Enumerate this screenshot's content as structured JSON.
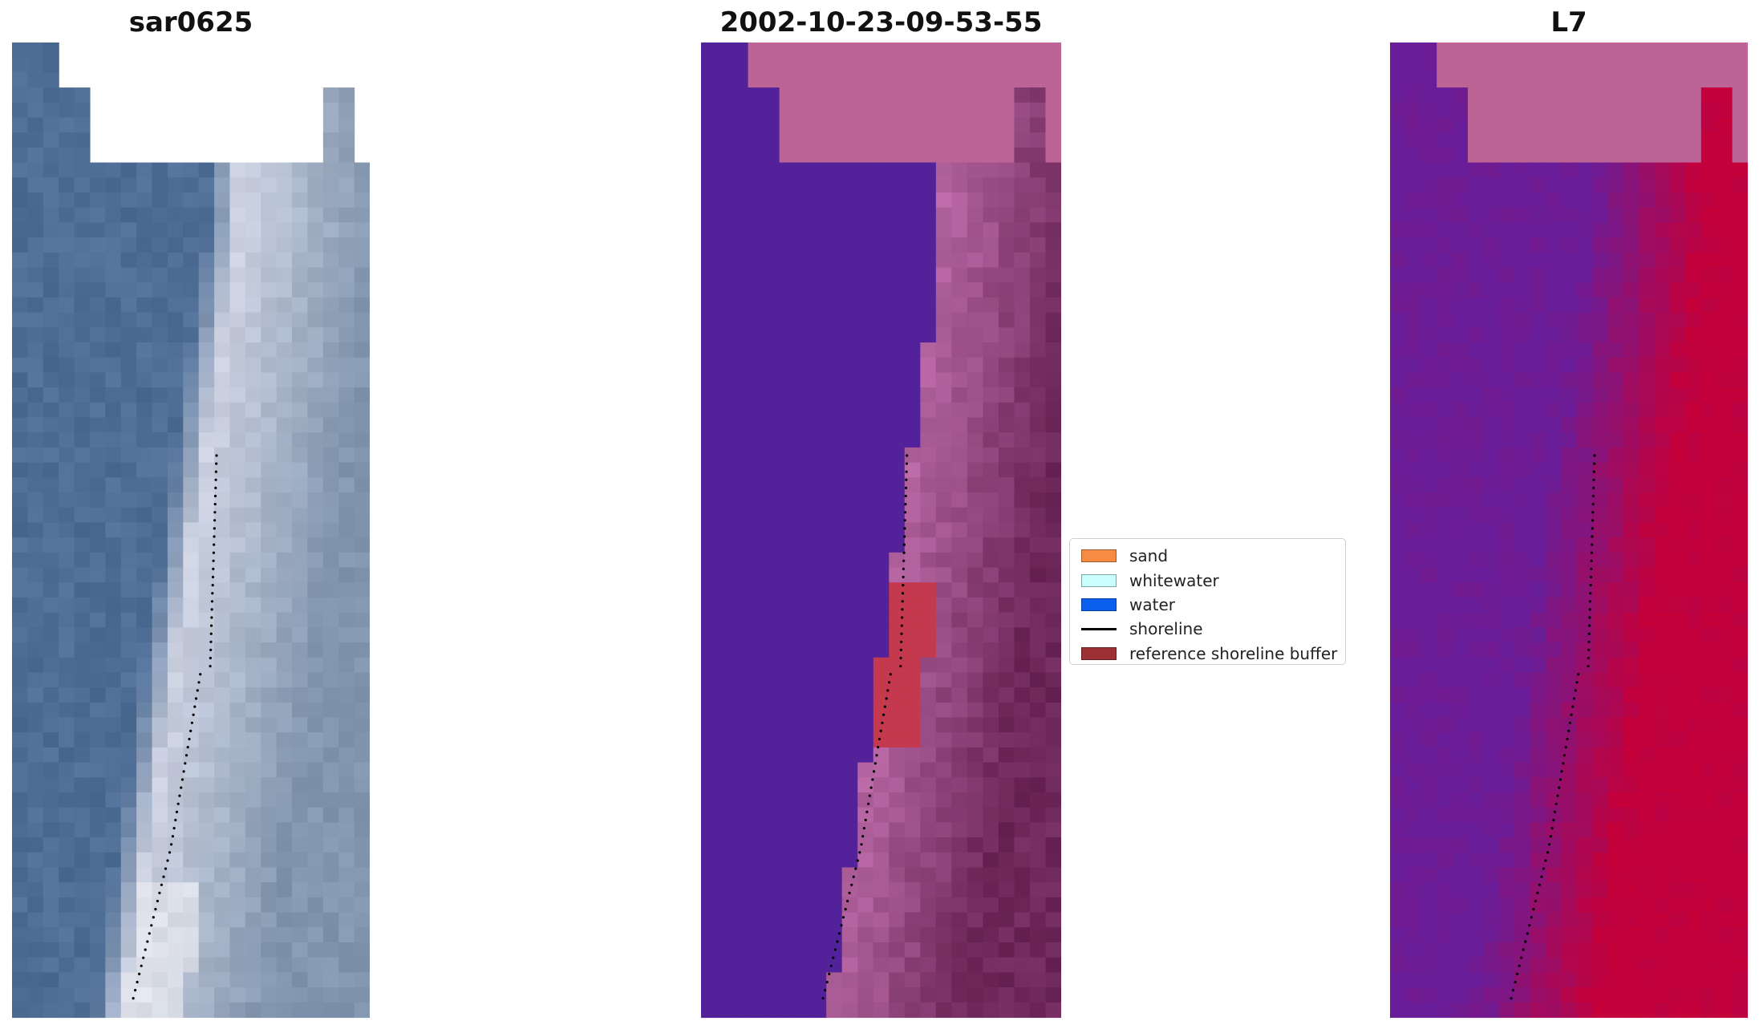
{
  "panels": [
    {
      "title": "sar0625",
      "style": "rgb"
    },
    {
      "title": "2002-10-23-09-53-55",
      "style": "classified"
    },
    {
      "title": "L7",
      "style": "index"
    }
  ],
  "legend": {
    "items": [
      {
        "label": "sand",
        "color": "#f58c42",
        "kind": "patch"
      },
      {
        "label": "whitewater",
        "color": "#c8fffd",
        "kind": "patch"
      },
      {
        "label": "water",
        "color": "#0a5fef",
        "kind": "patch"
      },
      {
        "label": "shoreline",
        "color": "#000000",
        "kind": "line"
      },
      {
        "label": "reference shoreline buffer",
        "color": "#9c3034",
        "kind": "patch"
      }
    ]
  },
  "colors": {
    "classified_water": "#53219a",
    "classified_nodata": "#bd6496",
    "classified_buffer": "#c4394d",
    "index_nodata": "#bd6496",
    "index_low": "#6a1d98",
    "index_high": "#c4003a"
  }
}
